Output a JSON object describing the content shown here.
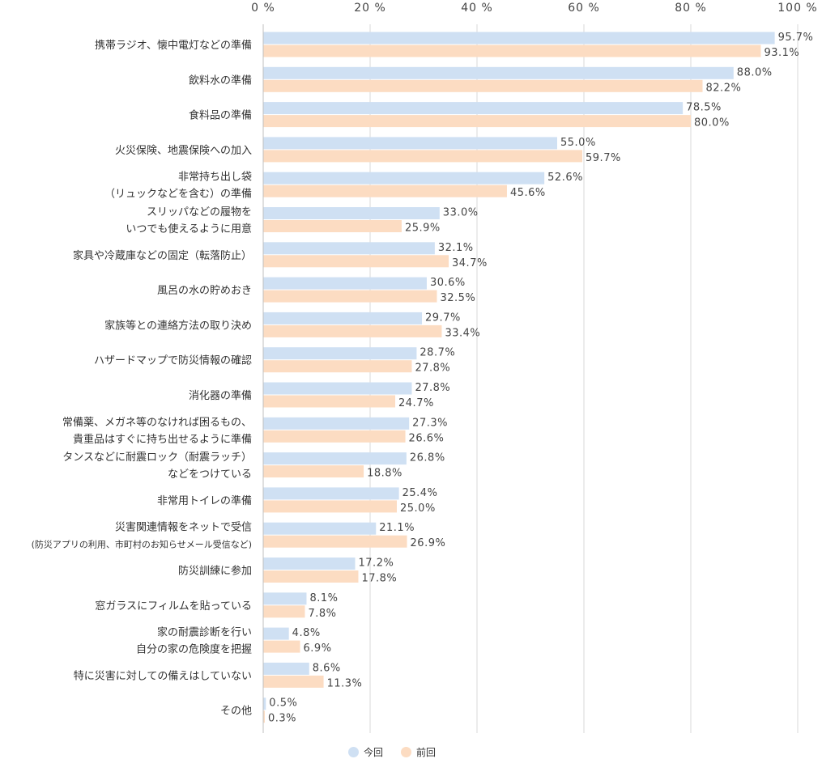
{
  "chart_data": {
    "type": "bar",
    "orientation": "horizontal",
    "x_ticks": [
      "0 %",
      "20 %",
      "40 %",
      "60 %",
      "80 %",
      "100 %"
    ],
    "xlim": [
      0,
      100
    ],
    "grid": true,
    "legend_position": "bottom",
    "categories": [
      [
        "携帯ラジオ、懐中電灯などの準備"
      ],
      [
        "飲料水の準備"
      ],
      [
        "食料品の準備"
      ],
      [
        "火災保険、地震保険への加入"
      ],
      [
        "非常持ち出し袋",
        "（リュックなどを含む）の準備"
      ],
      [
        "スリッパなどの履物を",
        "いつでも使えるように用意"
      ],
      [
        "家具や冷蔵庫などの固定（転落防止）"
      ],
      [
        "風呂の水の貯めおき"
      ],
      [
        "家族等との連絡方法の取り決め"
      ],
      [
        "ハザードマップで防災情報の確認"
      ],
      [
        "消化器の準備"
      ],
      [
        "常備薬、メガネ等のなければ困るもの、",
        "貴重品はすぐに持ち出せるように準備"
      ],
      [
        "タンスなどに耐震ロック（耐震ラッチ）",
        "などをつけている"
      ],
      [
        "非常用トイレの準備"
      ],
      [
        "災害関連情報をネットで受信",
        "(防災アプリの利用、市町村のお知らせメール受信など)"
      ],
      [
        "防災訓練に参加"
      ],
      [
        "窓ガラスにフィルムを貼っている"
      ],
      [
        "家の耐震診断を行い",
        "自分の家の危険度を把握"
      ],
      [
        "特に災害に対しての備えはしていない"
      ],
      [
        "その他"
      ]
    ],
    "series": [
      {
        "name": "今回",
        "color": "#cfe0f3",
        "values": [
          95.7,
          88.0,
          78.5,
          55.0,
          52.6,
          33.0,
          32.1,
          30.6,
          29.7,
          28.7,
          27.8,
          27.3,
          26.8,
          25.4,
          21.1,
          17.2,
          8.1,
          4.8,
          8.6,
          0.5
        ],
        "labels": [
          "95.7%",
          "88.0%",
          "78.5%",
          "55.0%",
          "52.6%",
          "33.0%",
          "32.1%",
          "30.6%",
          "29.7%",
          "28.7%",
          "27.8%",
          "27.3%",
          "26.8%",
          "25.4%",
          "21.1%",
          "17.2%",
          "8.1%",
          "4.8%",
          "8.6%",
          "0.5%"
        ]
      },
      {
        "name": "前回",
        "color": "#fcdcc2",
        "values": [
          93.1,
          82.2,
          80.0,
          59.7,
          45.6,
          25.9,
          34.7,
          32.5,
          33.4,
          27.8,
          24.7,
          26.6,
          18.8,
          25.0,
          26.9,
          17.8,
          7.8,
          6.9,
          11.3,
          0.3
        ],
        "labels": [
          "93.1%",
          "82.2%",
          "80.0%",
          "59.7%",
          "45.6%",
          "25.9%",
          "34.7%",
          "32.5%",
          "33.4%",
          "27.8%",
          "24.7%",
          "26.6%",
          "18.8%",
          "25.0%",
          "26.9%",
          "17.8%",
          "7.8%",
          "6.9%",
          "11.3%",
          "0.3%"
        ]
      }
    ]
  },
  "legend": {
    "current_label": "今回",
    "previous_label": "前回"
  }
}
